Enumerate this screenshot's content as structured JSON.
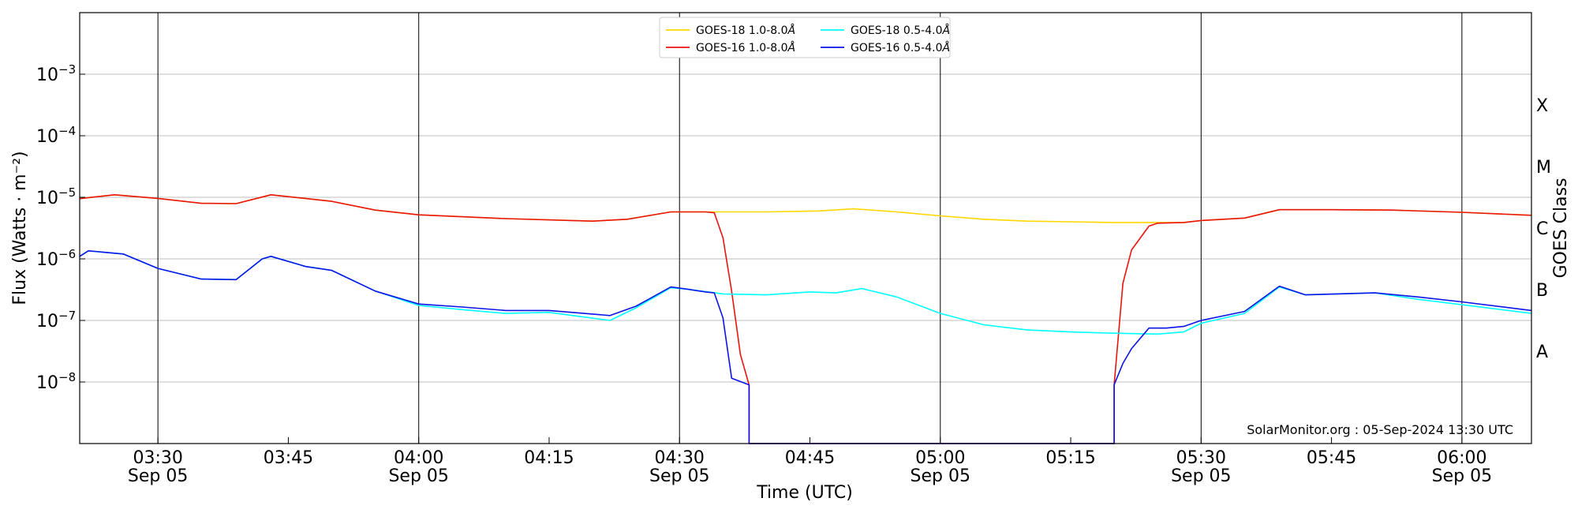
{
  "chart_data": {
    "type": "line",
    "xlabel": "Time (UTC)",
    "ylabel": "Flux (Watts · m⁻²)",
    "right_ylabel": "GOES Class",
    "credit": "SolarMonitor.org : 05-Sep-2024 13:30 UTC",
    "x_range": [
      "03:21",
      "06:08"
    ],
    "y_range": [
      1e-09,
      0.01
    ],
    "y_scale": "log",
    "grid": "horizontal at y ticks, vertical lines at major time ticks",
    "legend_position": "top-center",
    "x_ticks": [
      {
        "time": "03:30",
        "label": "03:30",
        "date": "Sep 05"
      },
      {
        "time": "03:45",
        "label": "03:45",
        "date": ""
      },
      {
        "time": "04:00",
        "label": "04:00",
        "date": "Sep 05"
      },
      {
        "time": "04:15",
        "label": "04:15",
        "date": ""
      },
      {
        "time": "04:30",
        "label": "04:30",
        "date": "Sep 05"
      },
      {
        "time": "04:45",
        "label": "04:45",
        "date": ""
      },
      {
        "time": "05:00",
        "label": "05:00",
        "date": "Sep 05"
      },
      {
        "time": "05:15",
        "label": "05:15",
        "date": ""
      },
      {
        "time": "05:30",
        "label": "05:30",
        "date": "Sep 05"
      },
      {
        "time": "05:45",
        "label": "05:45",
        "date": ""
      },
      {
        "time": "06:00",
        "label": "06:00",
        "date": "Sep 05"
      }
    ],
    "y_ticks": [
      {
        "value": 1e-08,
        "base": "10",
        "exp": "−8"
      },
      {
        "value": 1e-07,
        "base": "10",
        "exp": "−7"
      },
      {
        "value": 1e-06,
        "base": "10",
        "exp": "−6"
      },
      {
        "value": 1e-05,
        "base": "10",
        "exp": "−5"
      },
      {
        "value": 0.0001,
        "base": "10",
        "exp": "−4"
      },
      {
        "value": 0.001,
        "base": "10",
        "exp": "−3"
      }
    ],
    "goes_classes": [
      {
        "label": "A",
        "value": 3.16e-08
      },
      {
        "label": "B",
        "value": 3.16e-07
      },
      {
        "label": "C",
        "value": 3.16e-06
      },
      {
        "label": "M",
        "value": 3.16e-05
      },
      {
        "label": "X",
        "value": 0.000316
      }
    ],
    "legend": [
      {
        "series": "GOES-18 1.0-8.0Å",
        "label": "GOES-18 1.0-8.0",
        "unit": "Å"
      },
      {
        "series": "GOES-16 1.0-8.0Å",
        "label": "GOES-16 1.0-8.0",
        "unit": "Å"
      },
      {
        "series": "GOES-18 0.5-4.0Å",
        "label": "GOES-18 0.5-4.0",
        "unit": "Å"
      },
      {
        "series": "GOES-16 0.5-4.0Å",
        "label": "GOES-16 0.5-4.0",
        "unit": "Å"
      }
    ],
    "series": [
      {
        "name": "GOES-18 1.0-8.0Å",
        "color": "#ffd700",
        "points": [
          [
            "03:21",
            9.5e-06
          ],
          [
            "03:25",
            1.1e-05
          ],
          [
            "03:30",
            9.6e-06
          ],
          [
            "03:35",
            8e-06
          ],
          [
            "03:39",
            7.9e-06
          ],
          [
            "03:43",
            1.1e-05
          ],
          [
            "03:50",
            8.6e-06
          ],
          [
            "03:55",
            6.2e-06
          ],
          [
            "04:00",
            5.2e-06
          ],
          [
            "04:10",
            4.5e-06
          ],
          [
            "04:20",
            4.1e-06
          ],
          [
            "04:24",
            4.4e-06
          ],
          [
            "04:29",
            5.8e-06
          ],
          [
            "04:34",
            5.8e-06
          ],
          [
            "04:40",
            5.8e-06
          ],
          [
            "04:46",
            6e-06
          ],
          [
            "04:50",
            6.5e-06
          ],
          [
            "04:55",
            5.8e-06
          ],
          [
            "05:00",
            5e-06
          ],
          [
            "05:05",
            4.4e-06
          ],
          [
            "05:10",
            4.1e-06
          ],
          [
            "05:15",
            4e-06
          ],
          [
            "05:20",
            3.9e-06
          ],
          [
            "05:25",
            3.9e-06
          ],
          [
            "05:28",
            3.9e-06
          ],
          [
            "05:30",
            4.2e-06
          ],
          [
            "05:35",
            4.6e-06
          ],
          [
            "05:39",
            6.3e-06
          ],
          [
            "05:45",
            6.3e-06
          ],
          [
            "05:52",
            6.2e-06
          ],
          [
            "06:00",
            5.7e-06
          ],
          [
            "06:08",
            5.1e-06
          ]
        ]
      },
      {
        "name": "GOES-16 1.0-8.0Å",
        "color": "#e8140e",
        "points": [
          [
            "03:21",
            9.5e-06
          ],
          [
            "03:25",
            1.1e-05
          ],
          [
            "03:30",
            9.6e-06
          ],
          [
            "03:35",
            8e-06
          ],
          [
            "03:39",
            7.9e-06
          ],
          [
            "03:43",
            1.1e-05
          ],
          [
            "03:50",
            8.6e-06
          ],
          [
            "03:55",
            6.2e-06
          ],
          [
            "04:00",
            5.2e-06
          ],
          [
            "04:10",
            4.5e-06
          ],
          [
            "04:20",
            4.1e-06
          ],
          [
            "04:24",
            4.4e-06
          ],
          [
            "04:29",
            5.8e-06
          ],
          [
            "04:33",
            5.8e-06
          ],
          [
            "04:34",
            5.6e-06
          ],
          [
            "04:35",
            2.2e-06
          ],
          [
            "04:36",
            3e-07
          ],
          [
            "04:37",
            2.8e-08
          ],
          [
            "04:38",
            9e-09
          ],
          [
            "04:38",
            1e-09
          ],
          [
            "05:20",
            1e-09
          ],
          [
            "05:20",
            9e-09
          ],
          [
            "05:21",
            4e-07
          ],
          [
            "05:22",
            1.4e-06
          ],
          [
            "05:24",
            3.4e-06
          ],
          [
            "05:25",
            3.8e-06
          ],
          [
            "05:28",
            3.9e-06
          ],
          [
            "05:30",
            4.2e-06
          ],
          [
            "05:35",
            4.6e-06
          ],
          [
            "05:39",
            6.3e-06
          ],
          [
            "05:45",
            6.3e-06
          ],
          [
            "05:52",
            6.2e-06
          ],
          [
            "06:00",
            5.7e-06
          ],
          [
            "06:08",
            5.1e-06
          ]
        ]
      },
      {
        "name": "GOES-18 0.5-4.0Å",
        "color": "#00ffff",
        "points": [
          [
            "03:21",
            1.1e-06
          ],
          [
            "03:22",
            1.35e-06
          ],
          [
            "03:26",
            1.2e-06
          ],
          [
            "03:30",
            7e-07
          ],
          [
            "03:35",
            4.7e-07
          ],
          [
            "03:39",
            4.6e-07
          ],
          [
            "03:42",
            1e-06
          ],
          [
            "03:43",
            1.1e-06
          ],
          [
            "03:47",
            7.5e-07
          ],
          [
            "03:50",
            6.5e-07
          ],
          [
            "03:55",
            3e-07
          ],
          [
            "04:00",
            1.75e-07
          ],
          [
            "04:05",
            1.5e-07
          ],
          [
            "04:10",
            1.3e-07
          ],
          [
            "04:15",
            1.35e-07
          ],
          [
            "04:22",
            1e-07
          ],
          [
            "04:25",
            1.6e-07
          ],
          [
            "04:29",
            3.4e-07
          ],
          [
            "04:31",
            3.2e-07
          ],
          [
            "04:35",
            2.7e-07
          ],
          [
            "04:40",
            2.6e-07
          ],
          [
            "04:45",
            2.9e-07
          ],
          [
            "04:48",
            2.8e-07
          ],
          [
            "04:51",
            3.3e-07
          ],
          [
            "04:55",
            2.4e-07
          ],
          [
            "05:00",
            1.3e-07
          ],
          [
            "05:05",
            8.5e-08
          ],
          [
            "05:10",
            7e-08
          ],
          [
            "05:15",
            6.5e-08
          ],
          [
            "05:20",
            6.2e-08
          ],
          [
            "05:25",
            6e-08
          ],
          [
            "05:28",
            6.5e-08
          ],
          [
            "05:30",
            9e-08
          ],
          [
            "05:35",
            1.3e-07
          ],
          [
            "05:39",
            3.5e-07
          ],
          [
            "05:42",
            2.6e-07
          ],
          [
            "05:50",
            2.8e-07
          ],
          [
            "05:55",
            2.2e-07
          ],
          [
            "06:00",
            1.8e-07
          ],
          [
            "06:08",
            1.3e-07
          ]
        ]
      },
      {
        "name": "GOES-16 0.5-4.0Å",
        "color": "#0a14e6",
        "points": [
          [
            "03:21",
            1.1e-06
          ],
          [
            "03:22",
            1.35e-06
          ],
          [
            "03:26",
            1.2e-06
          ],
          [
            "03:30",
            7e-07
          ],
          [
            "03:35",
            4.7e-07
          ],
          [
            "03:39",
            4.6e-07
          ],
          [
            "03:42",
            1e-06
          ],
          [
            "03:43",
            1.1e-06
          ],
          [
            "03:47",
            7.5e-07
          ],
          [
            "03:50",
            6.5e-07
          ],
          [
            "03:55",
            3e-07
          ],
          [
            "04:00",
            1.85e-07
          ],
          [
            "04:05",
            1.65e-07
          ],
          [
            "04:10",
            1.45e-07
          ],
          [
            "04:15",
            1.45e-07
          ],
          [
            "04:22",
            1.2e-07
          ],
          [
            "04:25",
            1.7e-07
          ],
          [
            "04:29",
            3.5e-07
          ],
          [
            "04:31",
            3.2e-07
          ],
          [
            "04:33",
            2.9e-07
          ],
          [
            "04:34",
            2.8e-07
          ],
          [
            "04:35",
            1.1e-07
          ],
          [
            "04:36",
            1.15e-08
          ],
          [
            "04:38",
            9e-09
          ],
          [
            "04:38",
            1e-09
          ],
          [
            "05:20",
            1e-09
          ],
          [
            "05:20",
            9e-09
          ],
          [
            "05:21",
            2e-08
          ],
          [
            "05:22",
            3.5e-08
          ],
          [
            "05:24",
            7.5e-08
          ],
          [
            "05:26",
            7.5e-08
          ],
          [
            "05:28",
            8e-08
          ],
          [
            "05:30",
            1e-07
          ],
          [
            "05:35",
            1.4e-07
          ],
          [
            "05:39",
            3.6e-07
          ],
          [
            "05:42",
            2.6e-07
          ],
          [
            "05:50",
            2.8e-07
          ],
          [
            "05:55",
            2.4e-07
          ],
          [
            "06:00",
            2e-07
          ],
          [
            "06:08",
            1.45e-07
          ]
        ]
      }
    ]
  }
}
